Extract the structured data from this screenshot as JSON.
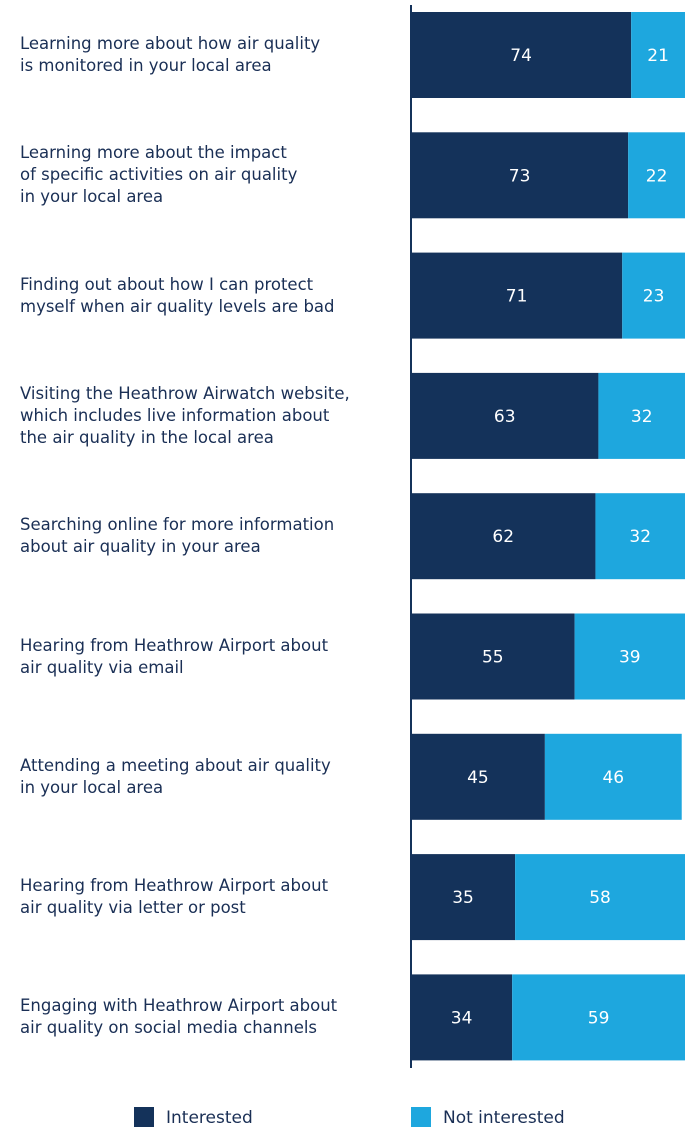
{
  "chart_data": {
    "type": "stacked_bar_horizontal",
    "categories": [
      "Learning more about how air quality\nis monitored in your local area",
      "Learning more about the impact\nof specific activities on air quality\nin your local area",
      "Finding out about how I can protect\nmyself when air quality levels are bad",
      "Visiting the Heathrow Airwatch website,\nwhich includes live information about\nthe air quality in the local area",
      "Searching online for more information\nabout air quality in your area",
      "Hearing from Heathrow Airport about\nair quality via email",
      "Attending a meeting about air quality\nin your local area",
      "Hearing from Heathrow Airport about\nair quality via letter or post",
      "Engaging with Heathrow Airport about\nair quality on social media channels"
    ],
    "series": [
      {
        "name": "Interested",
        "color": "#14325a",
        "values": [
          74,
          73,
          71,
          63,
          62,
          55,
          45,
          35,
          34
        ]
      },
      {
        "name": "Not interested",
        "color": "#1ea7de",
        "values": [
          21,
          22,
          23,
          32,
          32,
          39,
          46,
          58,
          59
        ]
      }
    ],
    "xlim": [
      0,
      100
    ]
  }
}
